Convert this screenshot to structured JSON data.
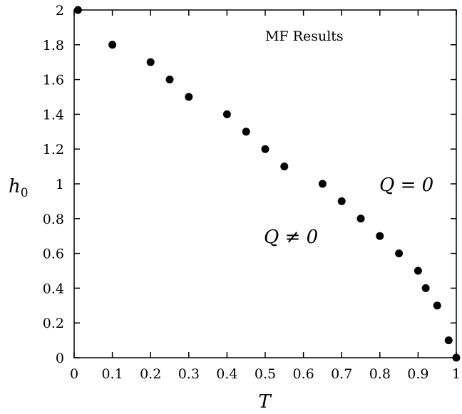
{
  "chart_data": {
    "type": "scatter",
    "title": "MF Results",
    "xlabel": "T",
    "ylabel_main": "h",
    "ylabel_sub": "0",
    "xlim": [
      0,
      1
    ],
    "ylim": [
      0,
      2
    ],
    "xticks": [
      "0",
      "0.1",
      "0.2",
      "0.3",
      "0.4",
      "0.5",
      "0.6",
      "0.7",
      "0.8",
      "0.9",
      "1"
    ],
    "yticks": [
      "0",
      "0.2",
      "0.4",
      "0.6",
      "0.8",
      "1",
      "1.2",
      "1.4",
      "1.6",
      "1.8",
      "2"
    ],
    "grid": false,
    "series": [
      {
        "x": [
          0.01,
          0.1,
          0.2,
          0.25,
          0.3,
          0.4,
          0.45,
          0.5,
          0.55,
          0.65,
          0.7,
          0.75,
          0.8,
          0.85,
          0.9,
          0.92,
          0.95,
          0.98,
          1.0
        ],
        "y": [
          2.0,
          1.8,
          1.7,
          1.6,
          1.5,
          1.4,
          1.3,
          1.2,
          1.1,
          1.0,
          0.9,
          0.8,
          0.7,
          0.6,
          0.5,
          0.4,
          0.3,
          0.1,
          0.0
        ]
      }
    ],
    "annotations": [
      "Q = 0",
      "Q ≠ 0"
    ]
  }
}
